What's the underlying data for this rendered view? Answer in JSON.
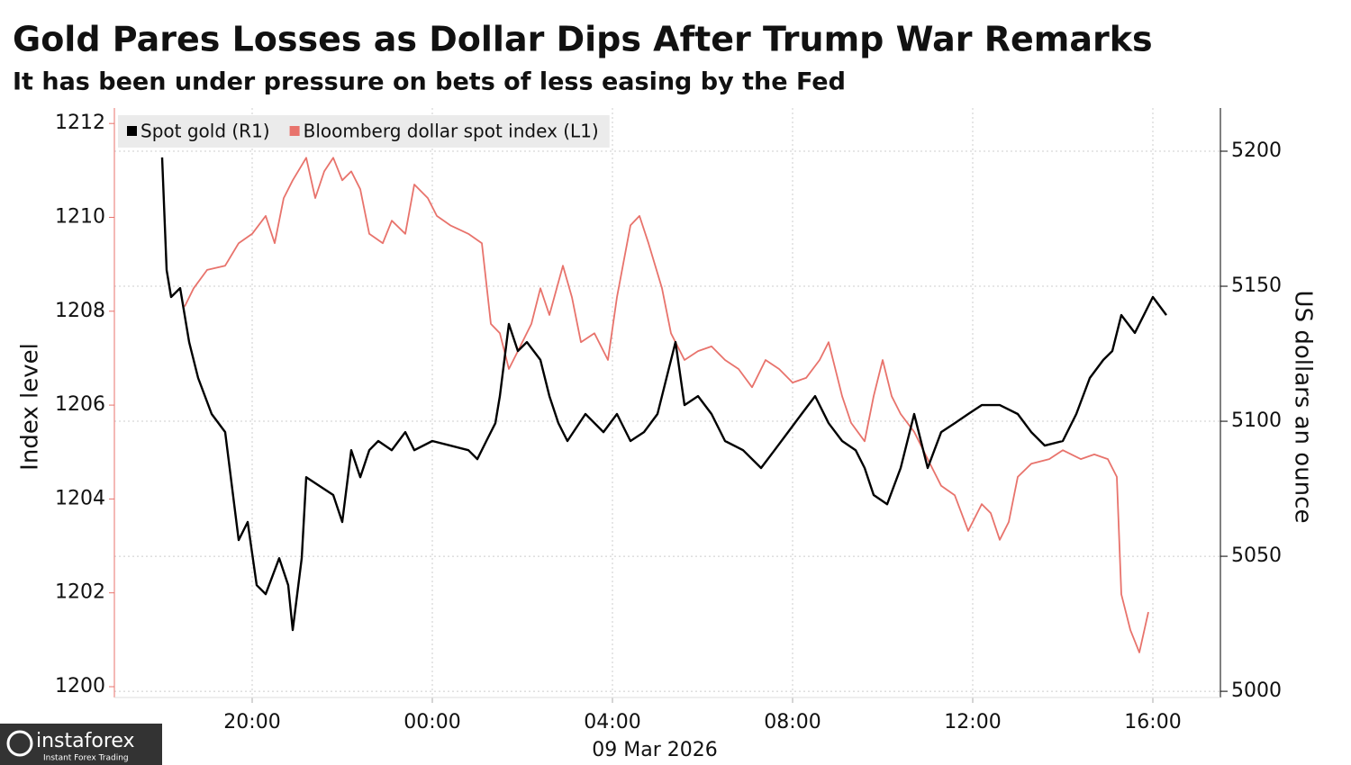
{
  "chart_data": {
    "type": "line",
    "title": "Gold Pares Losses as Dollar Dips After Trump War Remarks",
    "subtitle": "It has been under pressure on bets of less easing by the Fed",
    "ylabel": "Index level",
    "y2label": "US dollars an ounce",
    "xlabel": "09 Mar 2026",
    "xlim": [
      16.94,
      41.5
    ],
    "xticks": [
      {
        "value": 20,
        "label": "20:00"
      },
      {
        "value": 24,
        "label": "00:00"
      },
      {
        "value": 28,
        "label": "04:00"
      },
      {
        "value": 32,
        "label": "08:00"
      },
      {
        "value": 36,
        "label": "12:00"
      },
      {
        "value": 40,
        "label": "16:00"
      }
    ],
    "ylim": [
      1199.77,
      1212.33
    ],
    "yticks": [
      1200,
      1202,
      1204,
      1206,
      1208,
      1210,
      1212
    ],
    "y2lim": [
      4997.7,
      5216
    ],
    "y2ticks": [
      5000,
      5050,
      5100,
      5150,
      5200
    ],
    "grid": true,
    "legend": "top-left",
    "series": [
      {
        "name": "Spot gold (R1)",
        "color": "#000000",
        "axis": "y2",
        "x": [
          18.0,
          18.1,
          18.2,
          18.4,
          18.6,
          18.8,
          19.1,
          19.4,
          19.6,
          19.7,
          19.9,
          20.1,
          20.3,
          20.6,
          20.8,
          20.9,
          21.1,
          21.2,
          21.5,
          21.8,
          22.0,
          22.2,
          22.4,
          22.6,
          22.8,
          23.1,
          23.4,
          23.6,
          24.0,
          24.4,
          24.8,
          25.0,
          25.2,
          25.4,
          25.5,
          25.7,
          25.9,
          26.1,
          26.4,
          26.6,
          26.8,
          27.0,
          27.4,
          27.8,
          28.1,
          28.4,
          28.7,
          29.0,
          29.2,
          29.4,
          29.6,
          29.9,
          30.2,
          30.5,
          30.9,
          31.3,
          31.6,
          31.9,
          32.2,
          32.5,
          32.8,
          33.1,
          33.4,
          33.6,
          33.8,
          34.1,
          34.4,
          34.7,
          35.0,
          35.3,
          35.6,
          35.9,
          36.2,
          36.6,
          37.0,
          37.3,
          37.6,
          38.0,
          38.3,
          38.6,
          38.9,
          39.1,
          39.3,
          39.6,
          39.8,
          40.0,
          40.3
        ],
        "values": [
          5197.7,
          5156,
          5146,
          5149.3,
          5129.3,
          5116,
          5102.7,
          5096,
          5069.3,
          5056,
          5062.7,
          5039.3,
          5036,
          5049.3,
          5039.3,
          5022.7,
          5049.3,
          5079.3,
          5076,
          5072.7,
          5062.7,
          5089.3,
          5079.3,
          5089.3,
          5092.7,
          5089.3,
          5096,
          5089.3,
          5092.7,
          5091,
          5089.3,
          5086,
          5092.7,
          5099.3,
          5109.3,
          5136,
          5126,
          5129.3,
          5122.7,
          5109.3,
          5099.3,
          5092.7,
          5102.7,
          5096,
          5102.7,
          5092.7,
          5096,
          5102.7,
          5116,
          5129.3,
          5106,
          5109.3,
          5102.7,
          5092.7,
          5089.3,
          5082.7,
          5089.3,
          5096,
          5102.7,
          5109.3,
          5099.3,
          5092.7,
          5089.3,
          5082.7,
          5072.7,
          5069.3,
          5082.7,
          5102.7,
          5082.7,
          5096,
          5099.3,
          5102.7,
          5106,
          5106,
          5102.7,
          5096,
          5091,
          5092.7,
          5102.7,
          5116,
          5122.7,
          5126,
          5139.3,
          5132.7,
          5139.3,
          5146,
          5139.3
        ]
      },
      {
        "name": "Bloomberg dollar spot index (L1)",
        "color": "#e8736c",
        "axis": "y",
        "x": [
          18.5,
          18.7,
          19.0,
          19.4,
          19.7,
          20.0,
          20.3,
          20.5,
          20.7,
          20.9,
          21.2,
          21.4,
          21.6,
          21.8,
          22.0,
          22.2,
          22.4,
          22.6,
          22.9,
          23.1,
          23.4,
          23.6,
          23.9,
          24.1,
          24.4,
          24.8,
          25.1,
          25.3,
          25.5,
          25.7,
          25.9,
          26.2,
          26.4,
          26.6,
          26.9,
          27.1,
          27.3,
          27.6,
          27.9,
          28.1,
          28.4,
          28.6,
          28.8,
          29.1,
          29.3,
          29.6,
          29.9,
          30.2,
          30.5,
          30.8,
          31.1,
          31.4,
          31.7,
          32.0,
          32.3,
          32.6,
          32.8,
          33.1,
          33.3,
          33.6,
          33.8,
          34.0,
          34.2,
          34.4,
          34.7,
          35.0,
          35.3,
          35.6,
          35.9,
          36.2,
          36.4,
          36.6,
          36.8,
          37.0,
          37.3,
          37.7,
          38.0,
          38.4,
          38.7,
          39.0,
          39.2,
          39.3,
          39.5,
          39.7,
          39.9
        ],
        "values": [
          1208.1,
          1208.49,
          1208.88,
          1208.97,
          1209.45,
          1209.65,
          1210.03,
          1209.45,
          1210.41,
          1210.79,
          1211.27,
          1210.41,
          1210.98,
          1211.27,
          1210.79,
          1210.98,
          1210.6,
          1209.65,
          1209.45,
          1209.93,
          1209.65,
          1210.7,
          1210.41,
          1210.03,
          1209.83,
          1209.65,
          1209.45,
          1207.73,
          1207.53,
          1206.77,
          1207.15,
          1207.73,
          1208.49,
          1207.92,
          1208.97,
          1208.3,
          1207.34,
          1207.53,
          1206.96,
          1208.3,
          1209.83,
          1210.03,
          1209.45,
          1208.49,
          1207.53,
          1206.96,
          1207.15,
          1207.25,
          1206.96,
          1206.77,
          1206.38,
          1206.96,
          1206.77,
          1206.48,
          1206.58,
          1206.96,
          1207.34,
          1206.19,
          1205.62,
          1205.23,
          1206.19,
          1206.96,
          1206.19,
          1205.81,
          1205.43,
          1204.85,
          1204.28,
          1204.08,
          1203.32,
          1203.89,
          1203.7,
          1203.13,
          1203.51,
          1204.47,
          1204.75,
          1204.85,
          1205.04,
          1204.85,
          1204.95,
          1204.85,
          1204.47,
          1201.97,
          1201.21,
          1200.73,
          1201.59
        ]
      }
    ]
  },
  "watermark": {
    "brand": "instaforex",
    "tagline": "Instant Forex Trading"
  }
}
